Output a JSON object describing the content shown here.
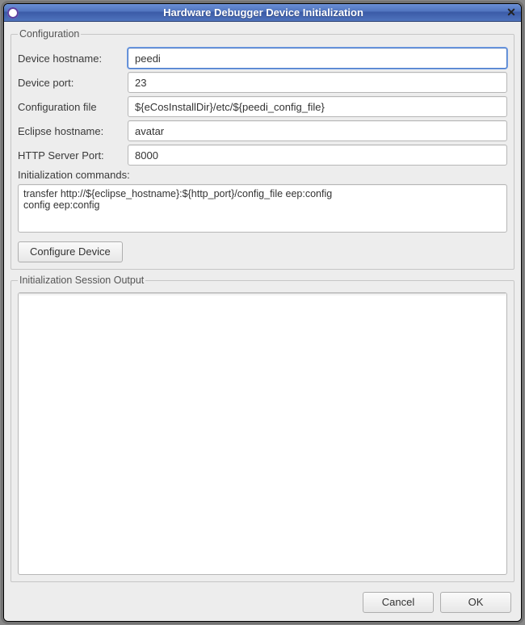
{
  "window": {
    "title": "Hardware Debugger Device Initialization"
  },
  "groups": {
    "configuration_legend": "Configuration",
    "output_legend": "Initialization Session Output"
  },
  "fields": {
    "device_hostname": {
      "label": "Device hostname:",
      "value": "peedi"
    },
    "device_port": {
      "label": "Device port:",
      "value": "23"
    },
    "config_file": {
      "label": "Configuration file",
      "value": "${eCosInstallDir}/etc/${peedi_config_file}"
    },
    "eclipse_hostname": {
      "label": "Eclipse hostname:",
      "value": "avatar"
    },
    "http_port": {
      "label": "HTTP Server Port:",
      "value": "8000"
    },
    "init_commands": {
      "label": "Initialization commands:",
      "value": "transfer http://${eclipse_hostname}:${http_port}/config_file eep:config\nconfig eep:config"
    }
  },
  "buttons": {
    "configure_device": "Configure Device",
    "cancel": "Cancel",
    "ok": "OK"
  },
  "output": {
    "text": ""
  },
  "colors": {
    "titlebar_gradient_top": "#6a8fd6",
    "titlebar_gradient_bottom": "#3a5aa6",
    "dialog_background": "#ededed",
    "border": "#b7b7b7",
    "focus_ring": "#4a79c7"
  }
}
